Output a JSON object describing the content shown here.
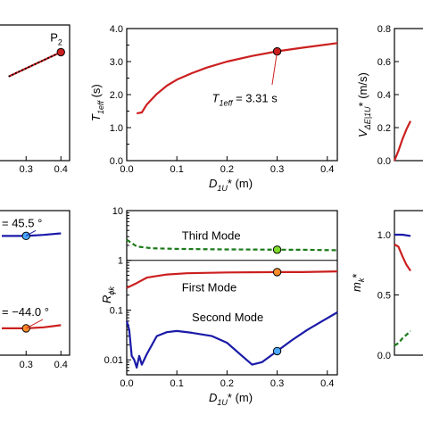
{
  "chart_data": [
    {
      "type": "line",
      "panel": "top-left (cropped)",
      "x_tick_labels": [
        "0.3",
        "0.4"
      ],
      "annotations": [
        {
          "text": "P",
          "subscript": "2",
          "at_x": 0.4
        }
      ],
      "series": [
        {
          "name": "",
          "color": "#cc1f1f",
          "style": "solid",
          "x": [
            0.25,
            0.3,
            0.35,
            0.4
          ],
          "y": [
            0.62,
            0.68,
            0.74,
            0.8
          ]
        },
        {
          "name": "",
          "color": "#000000",
          "style": "dotted",
          "x": [
            0.25,
            0.3,
            0.35,
            0.4
          ],
          "y": [
            0.62,
            0.68,
            0.74,
            0.8
          ]
        }
      ],
      "markers": [
        {
          "x": 0.4,
          "y": 0.8,
          "color": "#cc1f1f"
        }
      ]
    },
    {
      "type": "line",
      "panel": "top-center",
      "ylabel": "T",
      "ylabel_sub": "1eff",
      "ylabel_unit": " (s)",
      "xlabel": "D",
      "xlabel_sub": "1U",
      "xlabel_unit": "* (m)",
      "xlim": [
        0,
        0.42
      ],
      "ylim": [
        0,
        4.0
      ],
      "x_ticks": [
        0,
        0.1,
        0.2,
        0.3,
        0.4
      ],
      "x_tick_labels": [
        "0.0",
        "0.1",
        "0.2",
        "0.3",
        "0.4"
      ],
      "y_ticks": [
        0,
        0.5,
        1.0,
        1.5,
        2.0,
        2.5,
        3.0,
        3.5,
        4.0
      ],
      "y_tick_labels": [
        "0.0",
        "",
        "1.0",
        "",
        "2.0",
        "",
        "3.0",
        "",
        "4.0"
      ],
      "annotation": {
        "prefix": "T",
        "sub": "1eff",
        "value": " = 3.31 s"
      },
      "series": [
        {
          "name": "",
          "color": "#cc1f1f",
          "style": "solid",
          "x": [
            0.02,
            0.03,
            0.04,
            0.06,
            0.08,
            0.1,
            0.13,
            0.16,
            0.2,
            0.25,
            0.3,
            0.35,
            0.42
          ],
          "y": [
            1.43,
            1.46,
            1.7,
            2.02,
            2.27,
            2.45,
            2.65,
            2.82,
            3.0,
            3.17,
            3.31,
            3.42,
            3.56
          ]
        }
      ],
      "markers": [
        {
          "x": 0.3,
          "y": 3.31,
          "color": "#cc1f1f"
        }
      ]
    },
    {
      "type": "line",
      "panel": "top-right (cropped)",
      "ylabel": "V",
      "ylabel_sub": "ΔE|1U",
      "ylabel_unit": "* (m/s)",
      "ylim": [
        0,
        0.8
      ],
      "y_ticks": [
        0,
        0.2,
        0.4,
        0.6,
        0.8
      ],
      "y_tick_labels": [
        "0.0",
        "0.2",
        "0.4",
        "0.6",
        "0.8"
      ],
      "series": [
        {
          "name": "",
          "color": "#cc1f1f",
          "style": "solid",
          "x": [
            0,
            0.01,
            0.02,
            0.03,
            0.04
          ],
          "y": [
            0.0,
            0.06,
            0.13,
            0.19,
            0.24
          ]
        }
      ]
    },
    {
      "type": "line",
      "panel": "bottom-left (cropped)",
      "x_tick_labels": [
        "0.3",
        "0.4"
      ],
      "annotations": [
        {
          "text": "= 45.5 °",
          "color": "#1a1aa8"
        },
        {
          "text": "= −44.0 °",
          "color": "#cc1f1f"
        }
      ],
      "series": [
        {
          "name": "",
          "color": "#1a1aa8",
          "style": "solid",
          "x": [
            0.23,
            0.3,
            0.35,
            0.4
          ],
          "y": [
            45.5,
            45.5,
            46.5,
            48.0
          ]
        },
        {
          "name": "",
          "color": "#cc1f1f",
          "style": "solid",
          "x": [
            0.23,
            0.3,
            0.35,
            0.4
          ],
          "y": [
            -44.0,
            -44.0,
            -43.0,
            -41.0
          ]
        }
      ],
      "markers": [
        {
          "x": 0.3,
          "y": 45.5,
          "color": "#4aa8ff"
        },
        {
          "x": 0.3,
          "y": -44.0,
          "color": "#ff8c2a"
        }
      ]
    },
    {
      "type": "line",
      "panel": "bottom-center",
      "ylabel": "R",
      "ylabel_sub": "ϕk",
      "xlabel": "D",
      "xlabel_sub": "1U",
      "xlabel_unit": "* (m)",
      "yscale": "log",
      "xlim": [
        0,
        0.42
      ],
      "ylim": [
        0.005,
        10
      ],
      "x_ticks": [
        0,
        0.1,
        0.2,
        0.3,
        0.4
      ],
      "x_tick_labels": [
        "0.0",
        "0.1",
        "0.2",
        "0.3",
        "0.4"
      ],
      "y_ticks": [
        0.01,
        0.1,
        1,
        10
      ],
      "y_tick_labels": [
        "0.01",
        "0.1",
        "1",
        "10"
      ],
      "series": [
        {
          "name": "Third Mode",
          "color": "#1a7a1a",
          "style": "dashed",
          "x": [
            0,
            0.02,
            0.05,
            0.1,
            0.15,
            0.2,
            0.25,
            0.3,
            0.35,
            0.42
          ],
          "y": [
            2.6,
            1.9,
            1.75,
            1.7,
            1.68,
            1.66,
            1.65,
            1.64,
            1.63,
            1.6
          ]
        },
        {
          "name": "First Mode",
          "color": "#cc1f1f",
          "style": "solid",
          "x": [
            0,
            0.02,
            0.04,
            0.08,
            0.12,
            0.2,
            0.3,
            0.35,
            0.42
          ],
          "y": [
            0.28,
            0.35,
            0.45,
            0.52,
            0.55,
            0.57,
            0.58,
            0.58,
            0.6
          ]
        },
        {
          "name": "Second Mode",
          "color": "#1a1aa8",
          "style": "solid",
          "x": [
            0,
            0.005,
            0.01,
            0.015,
            0.02,
            0.025,
            0.03,
            0.04,
            0.06,
            0.08,
            0.1,
            0.13,
            0.17,
            0.2,
            0.23,
            0.25,
            0.27,
            0.3,
            0.33,
            0.36,
            0.39,
            0.42
          ],
          "y": [
            0.06,
            0.04,
            0.012,
            0.01,
            0.007,
            0.012,
            0.008,
            0.013,
            0.03,
            0.036,
            0.038,
            0.035,
            0.03,
            0.022,
            0.012,
            0.008,
            0.009,
            0.015,
            0.025,
            0.04,
            0.06,
            0.09
          ]
        }
      ],
      "series_labels": [
        "Third Mode",
        "First Mode",
        "Second Mode"
      ],
      "markers": [
        {
          "x": 0.3,
          "y": 1.64,
          "color": "#7ddc2a"
        },
        {
          "x": 0.3,
          "y": 0.58,
          "color": "#ff8c2a"
        },
        {
          "x": 0.3,
          "y": 0.015,
          "color": "#4aa8ff"
        }
      ]
    },
    {
      "type": "line",
      "panel": "bottom-right (cropped)",
      "ylabel": "m",
      "ylabel_sub": "k",
      "ylabel_unit": "*",
      "ylim": [
        0,
        1.2
      ],
      "y_ticks": [
        0,
        0.5,
        1.0
      ],
      "y_tick_labels": [
        "0.0",
        "0.5",
        "1.0"
      ],
      "series": [
        {
          "name": "",
          "color": "#1a1aa8",
          "style": "solid",
          "x": [
            0,
            0.01,
            0.02,
            0.04
          ],
          "y": [
            1.0,
            1.0,
            1.0,
            0.99
          ]
        },
        {
          "name": "",
          "color": "#cc1f1f",
          "style": "solid",
          "x": [
            0,
            0.01,
            0.02,
            0.03,
            0.04
          ],
          "y": [
            0.92,
            0.9,
            0.82,
            0.75,
            0.7
          ]
        },
        {
          "name": "",
          "color": "#1a7a1a",
          "style": "dashed",
          "x": [
            0,
            0.01,
            0.02,
            0.03,
            0.04
          ],
          "y": [
            0.08,
            0.1,
            0.14,
            0.17,
            0.2
          ]
        }
      ]
    }
  ]
}
